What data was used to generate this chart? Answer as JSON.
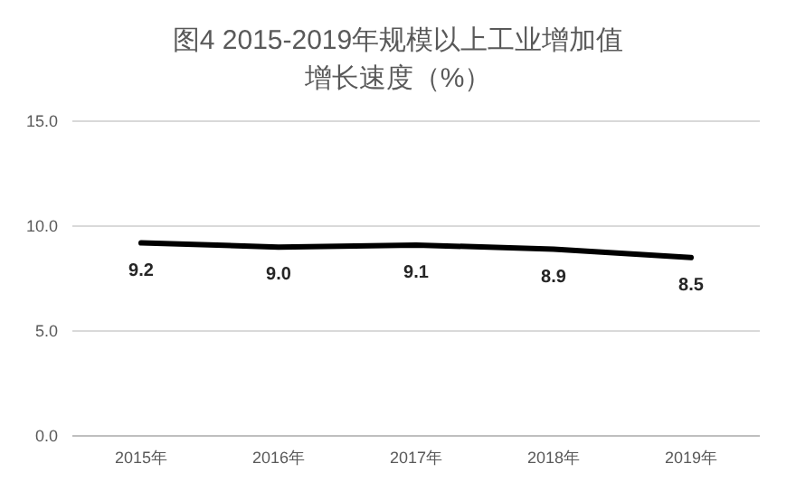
{
  "chart_data": {
    "type": "line",
    "title": "图4 2015-2019年规模以上工业增加值",
    "subtitle": "增长速度（%）",
    "categories": [
      "2015年",
      "2016年",
      "2017年",
      "2018年",
      "2019年"
    ],
    "series": [
      {
        "color": "#000000",
        "values": [
          9.2,
          9.0,
          9.1,
          8.9,
          8.5
        ],
        "value_labels": [
          "9.2",
          "9.0",
          "9.1",
          "8.9",
          "8.5"
        ]
      }
    ],
    "ylim": [
      0,
      15
    ],
    "yticks": [
      {
        "value": 0,
        "label": "0.0"
      },
      {
        "value": 5,
        "label": "5.0"
      },
      {
        "value": 10,
        "label": "10.0"
      },
      {
        "value": 15,
        "label": "15.0"
      }
    ],
    "grid": "y",
    "marker": "none",
    "line_style": "solid"
  }
}
